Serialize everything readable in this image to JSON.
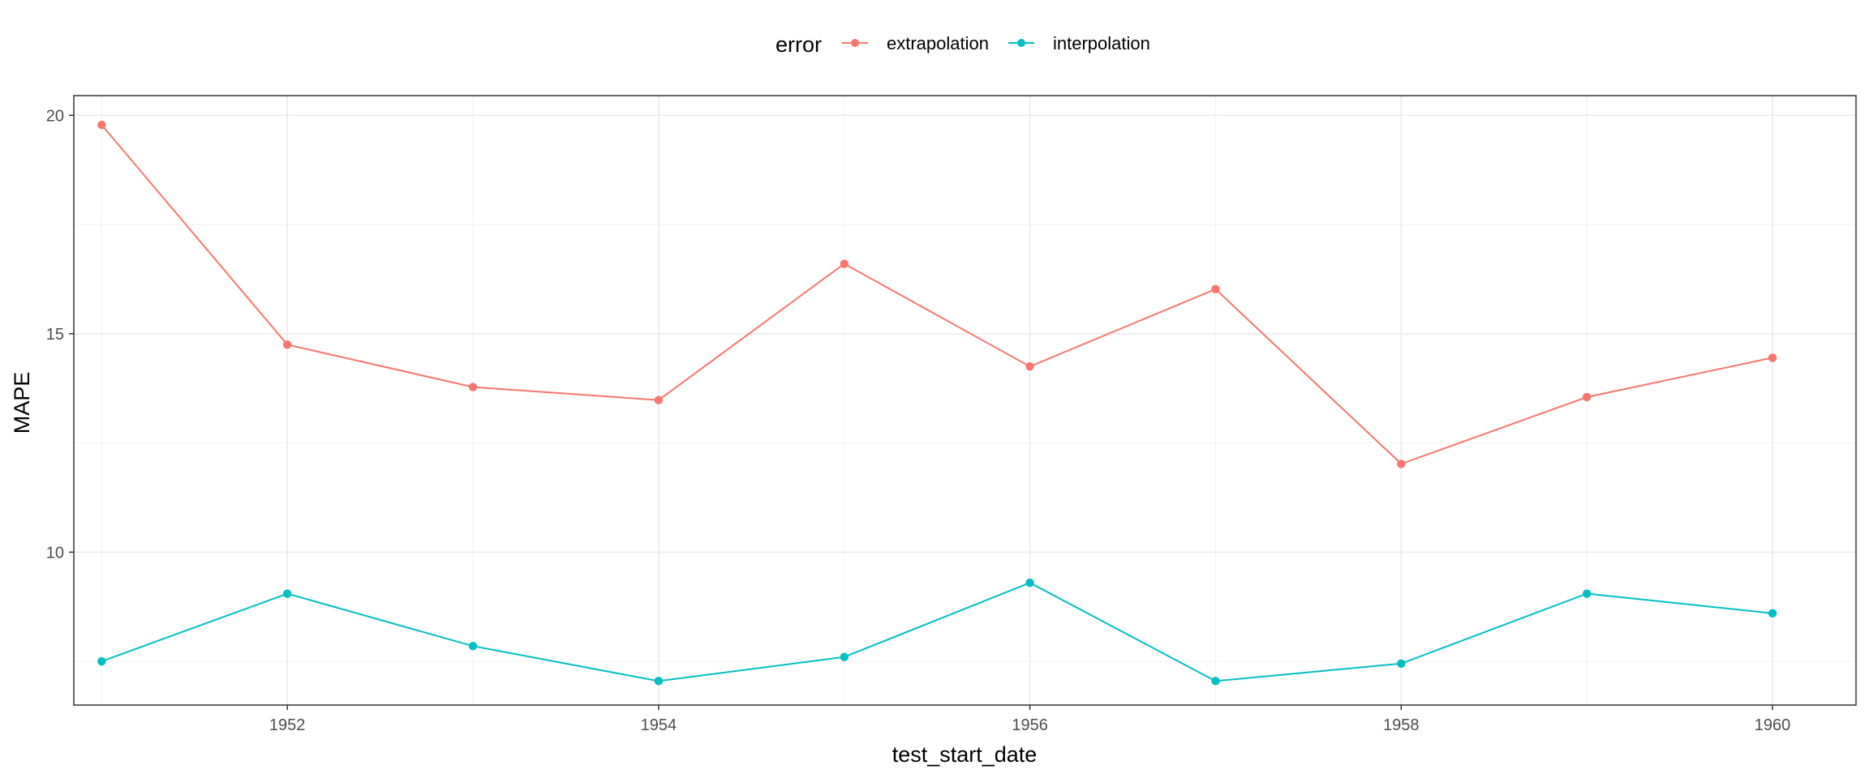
{
  "chart_data": {
    "type": "line",
    "xlabel": "test_start_date",
    "ylabel": "MAPE",
    "legend": {
      "title": "error",
      "position": "top"
    },
    "grid": true,
    "x": [
      1951,
      1952,
      1953,
      1954,
      1955,
      1956,
      1957,
      1958,
      1959,
      1960
    ],
    "xlim": [
      1950.85,
      1960.45
    ],
    "ylim": [
      6.5,
      20.45
    ],
    "x_ticks": [
      1952,
      1954,
      1956,
      1958,
      1960
    ],
    "y_ticks": [
      10,
      15,
      20
    ],
    "series": [
      {
        "name": "extrapolation",
        "color": "#F8766D",
        "values": [
          19.78,
          14.75,
          13.78,
          13.48,
          16.6,
          14.25,
          16.02,
          12.02,
          13.55,
          14.45
        ]
      },
      {
        "name": "interpolation",
        "color": "#00BFC4",
        "values": [
          7.5,
          9.05,
          7.85,
          7.05,
          7.6,
          9.3,
          7.05,
          7.45,
          9.05,
          8.6
        ]
      }
    ]
  }
}
